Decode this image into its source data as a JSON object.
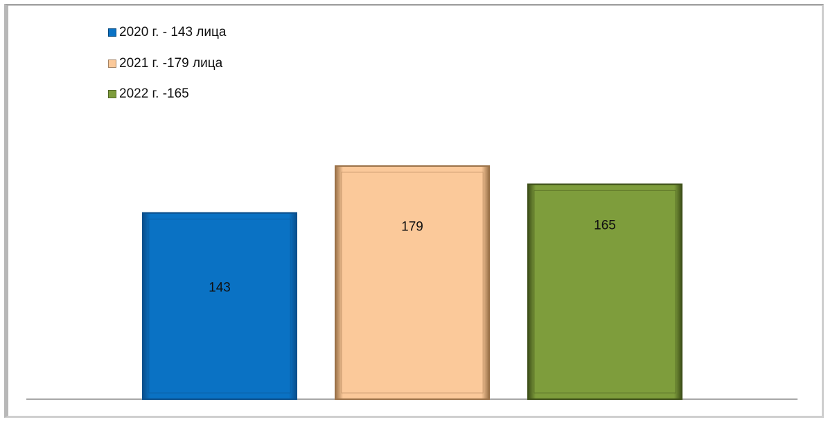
{
  "chart_data": {
    "type": "bar",
    "categories": [
      "2020 г. - 143 лица",
      "2021 г. -179 лица",
      "2022 г. -165"
    ],
    "values": [
      143,
      179,
      165
    ],
    "data_labels": [
      "143",
      "179",
      "165"
    ],
    "title": "",
    "xlabel": "",
    "ylabel": "",
    "ylim": [
      0,
      179
    ],
    "grid": false,
    "legend_placement": "top-left",
    "series": [
      {
        "name": "2020 г. - 143 лица",
        "value": 143,
        "color": "#0A72C4"
      },
      {
        "name": "2021 г. -179 лица",
        "value": 179,
        "color": "#FBC99A"
      },
      {
        "name": "2022 г. -165",
        "value": 165,
        "color": "#7E9D3C"
      }
    ]
  },
  "colors": {
    "bar_2020": "#0A72C4",
    "bar_2020_edge": "#0A4F8C",
    "bar_2021": "#FBC99A",
    "bar_2021_edge": "#9B7249",
    "bar_2022": "#7E9D3C",
    "bar_2022_edge": "#3E5019",
    "axis": "#8a8a8a"
  }
}
